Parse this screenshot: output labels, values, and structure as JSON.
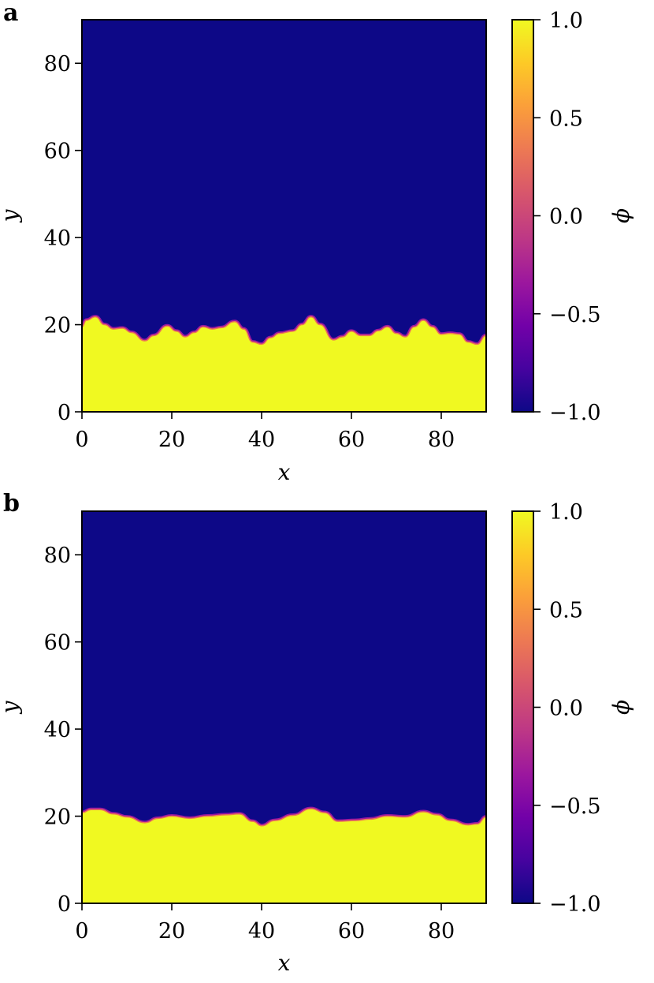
{
  "colors": {
    "low": "#0d0887",
    "high": "#f0f921",
    "colormap": [
      "#0d0887",
      "#46039f",
      "#7201a8",
      "#9c179e",
      "#bd3786",
      "#d8576b",
      "#ed7953",
      "#fb9f3a",
      "#fdca26",
      "#f0f921"
    ]
  },
  "chart_data": [
    {
      "type": "heatmap",
      "panel_label": "a",
      "xlabel": "x",
      "ylabel": "y",
      "xlim": [
        0,
        90
      ],
      "ylim": [
        0,
        90
      ],
      "x_ticks": [
        0,
        20,
        40,
        60,
        80
      ],
      "y_ticks": [
        0,
        20,
        40,
        60,
        80
      ],
      "x_tick_labels": [
        "0",
        "20",
        "40",
        "60",
        "80"
      ],
      "y_tick_labels": [
        "0",
        "20",
        "40",
        "60",
        "80"
      ],
      "colorbar": {
        "label": "ϕ",
        "range": [
          -1.0,
          1.0
        ],
        "ticks": [
          1.0,
          0.5,
          0.0,
          -0.5,
          -1.0
        ],
        "tick_labels": [
          "1.0",
          "0.5",
          "0.0",
          "−0.5",
          "−1.0"
        ]
      },
      "value_below_interface": 1.0,
      "value_above_interface": -1.0,
      "interface": {
        "x": [
          0,
          1,
          3,
          5,
          7,
          9,
          11,
          14,
          16,
          19,
          21,
          23,
          25,
          27,
          29,
          31,
          34,
          36,
          38,
          40,
          42,
          44,
          47,
          49,
          51,
          53,
          56,
          58,
          60,
          62,
          64,
          66,
          68,
          70,
          72,
          74,
          76,
          78,
          80,
          82,
          84,
          86,
          88,
          90
        ],
        "y": [
          19.5,
          21.0,
          21.8,
          20.0,
          19.0,
          19.2,
          18.2,
          16.3,
          17.5,
          19.7,
          18.5,
          17.2,
          18.2,
          19.5,
          19.0,
          19.3,
          20.7,
          19.0,
          16.0,
          15.5,
          17.0,
          18.0,
          18.5,
          20.0,
          21.8,
          20.0,
          16.5,
          17.2,
          18.5,
          17.5,
          17.5,
          18.6,
          19.5,
          18.0,
          17.2,
          19.5,
          21.0,
          19.5,
          17.8,
          18.0,
          17.8,
          16.0,
          15.5,
          17.5
        ]
      }
    },
    {
      "type": "heatmap",
      "panel_label": "b",
      "xlabel": "x",
      "ylabel": "y",
      "xlim": [
        0,
        90
      ],
      "ylim": [
        0,
        90
      ],
      "x_ticks": [
        0,
        20,
        40,
        60,
        80
      ],
      "y_ticks": [
        0,
        20,
        40,
        60,
        80
      ],
      "x_tick_labels": [
        "0",
        "20",
        "40",
        "60",
        "80"
      ],
      "y_tick_labels": [
        "0",
        "20",
        "40",
        "60",
        "80"
      ],
      "colorbar": {
        "label": "ϕ",
        "range": [
          -1.0,
          1.0
        ],
        "ticks": [
          1.0,
          0.5,
          0.0,
          -0.5,
          -1.0
        ],
        "tick_labels": [
          "1.0",
          "0.5",
          "0.0",
          "−0.5",
          "−1.0"
        ]
      },
      "value_below_interface": 1.0,
      "value_above_interface": -1.0,
      "interface": {
        "x": [
          0,
          2,
          4,
          7,
          10,
          14,
          17,
          20,
          24,
          28,
          32,
          35,
          38,
          40,
          43,
          47,
          51,
          54,
          57,
          61,
          64,
          68,
          72,
          76,
          79,
          82,
          86,
          88,
          90
        ],
        "y": [
          20.8,
          21.5,
          21.5,
          20.5,
          19.8,
          18.5,
          19.5,
          20.0,
          19.5,
          20.0,
          20.3,
          20.5,
          18.8,
          17.8,
          19.0,
          20.2,
          21.7,
          20.8,
          18.8,
          19.0,
          19.3,
          20.0,
          19.8,
          21.0,
          20.3,
          19.0,
          18.0,
          18.2,
          19.8
        ]
      }
    }
  ]
}
